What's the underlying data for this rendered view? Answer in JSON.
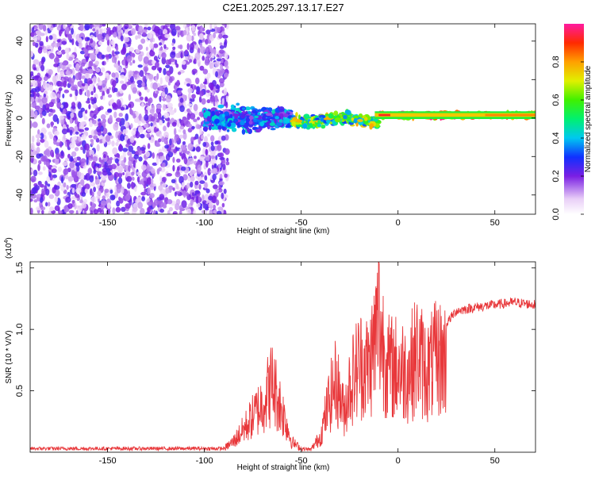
{
  "title": "C2E1.2025.297.13.17.E27",
  "chart_data": [
    {
      "type": "heatmap",
      "name": "spectrogram",
      "xlabel": "Height of straight line (km)",
      "ylabel": "Frequency (Hz)",
      "xlim": [
        -190,
        71
      ],
      "ylim": [
        -50,
        49
      ],
      "xticks": [
        -150,
        -100,
        -50,
        0,
        50
      ],
      "yticks": [
        -40,
        -20,
        0,
        20,
        40
      ],
      "colorbar": {
        "label": "Normalized spectral amplitude",
        "range": [
          0.0,
          1.0
        ],
        "ticks": [
          0.0,
          0.2,
          0.4,
          0.6,
          0.8
        ]
      },
      "regions": [
        {
          "x_from": -190,
          "x_to": -88,
          "description": "noise",
          "amplitude_range": [
            0.05,
            0.25
          ],
          "freq_spread": 50
        },
        {
          "x_from": -100,
          "x_to": -55,
          "description": "emerging signal near 0 Hz",
          "amplitude_range": [
            0.15,
            0.45
          ],
          "freq_spread": 8
        },
        {
          "x_from": -55,
          "x_to": -10,
          "description": "signal band near 0 Hz",
          "amplitude_range": [
            0.3,
            0.8
          ],
          "freq_spread": 4
        },
        {
          "x_from": -10,
          "x_to": 71,
          "description": "strong narrow band at 0-2 Hz",
          "amplitude_range": [
            0.6,
            1.0
          ],
          "freq_spread": 2
        }
      ]
    },
    {
      "type": "line",
      "name": "snr",
      "xlabel": "Height of straight line (km)",
      "ylabel": "SNR (10 * V/V)",
      "multiplier": "(x10^4)",
      "xlim": [
        -190,
        71
      ],
      "ylim": [
        0,
        1.55
      ],
      "xticks": [
        -150,
        -100,
        -50,
        0,
        50
      ],
      "yticks": [
        0.5,
        1.0,
        1.5
      ],
      "color": "#e8383b",
      "envelope": {
        "x": [
          -190,
          -100,
          -90,
          -85,
          -80,
          -75,
          -70,
          -65,
          -62,
          -58,
          -55,
          -50,
          -45,
          -40,
          -36,
          -32,
          -28,
          -25,
          -20,
          -15,
          -10,
          -5,
          0,
          5,
          10,
          15,
          20,
          25,
          30,
          40,
          50,
          60,
          71
        ],
        "y": [
          0.02,
          0.02,
          0.04,
          0.12,
          0.25,
          0.4,
          0.55,
          0.78,
          0.6,
          0.35,
          0.12,
          0.04,
          0.03,
          0.18,
          0.55,
          0.8,
          0.45,
          0.75,
          1.0,
          0.95,
          1.45,
          0.95,
          0.95,
          0.9,
          1.1,
          0.9,
          1.05,
          1.05,
          1.15,
          1.18,
          1.2,
          1.22,
          1.2
        ]
      }
    }
  ],
  "labels": {
    "tick_zero": "0.0",
    "multiplier_base": "(x10",
    "multiplier_exp": "4",
    "multiplier_close": ")"
  }
}
